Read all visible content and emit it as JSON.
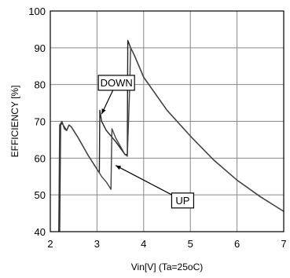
{
  "chart_data": {
    "type": "line",
    "xlabel": "Vin[V] (Ta=25oC)",
    "ylabel": "EFFICIENCY [%]",
    "xlim": [
      2,
      7
    ],
    "ylim": [
      40,
      100
    ],
    "x_ticks": [
      "2",
      "3",
      "4",
      "5",
      "6",
      "7"
    ],
    "y_ticks": [
      "40",
      "50",
      "60",
      "70",
      "80",
      "90",
      "100"
    ],
    "grid": true,
    "series": [
      {
        "name": "DOWN",
        "x": [
          2.2,
          2.22,
          2.25,
          2.3,
          2.35,
          2.4,
          2.45,
          2.6,
          2.8,
          3.0,
          3.05,
          3.06,
          3.1,
          3.2,
          3.4,
          3.6,
          3.65,
          3.66,
          3.72,
          3.8,
          4.0,
          4.5,
          5.0,
          5.5,
          6.0,
          6.5,
          7.0
        ],
        "y": [
          40,
          69,
          69.5,
          68.5,
          67.5,
          69,
          68.5,
          65.5,
          61,
          57,
          56,
          73,
          70,
          67.5,
          64.5,
          61,
          61,
          92,
          90,
          88,
          82,
          73,
          66,
          59.5,
          54,
          49.5,
          45.5
        ]
      },
      {
        "name": "UP",
        "x": [
          2.18,
          2.2,
          2.25,
          2.3,
          2.35,
          2.4,
          2.45,
          2.6,
          2.8,
          3.0,
          3.05,
          3.1,
          3.2,
          3.3,
          3.32,
          3.4,
          3.6,
          3.65,
          3.7,
          3.72,
          3.8,
          4.0,
          4.5,
          5.0,
          5.5,
          6.0,
          6.5,
          7.0
        ],
        "y": [
          40,
          69,
          70,
          68,
          67.5,
          69,
          68.5,
          65.5,
          61,
          57,
          56,
          55,
          53.5,
          51.5,
          68,
          65.5,
          61,
          60.5,
          79,
          90,
          88,
          82,
          73,
          66,
          59.5,
          54,
          49.5,
          45.5
        ]
      }
    ],
    "annotations": [
      {
        "label": "DOWN",
        "box_x": 3.03,
        "box_y": 82.5,
        "target_x": 3.1,
        "target_y": 72
      },
      {
        "label": "UP",
        "box_x": 4.6,
        "box_y": 50.5,
        "target_x": 3.4,
        "target_y": 58
      }
    ]
  }
}
